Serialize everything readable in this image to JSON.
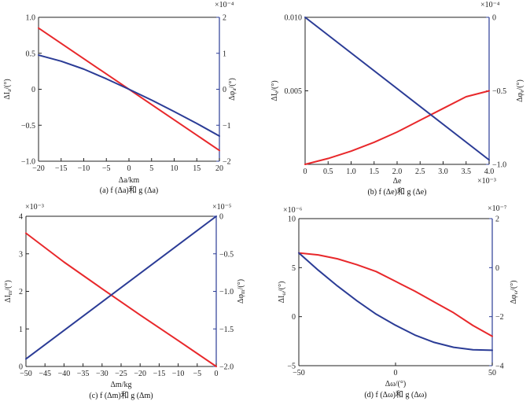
{
  "chart_data": [
    {
      "type": "line",
      "caption": "(a) f (Δa)和 g (Δa)",
      "xlabel": "Δa/km",
      "ylabel_left": "ΔI_a/(°)",
      "ylabel_right": "Δφ_a/(°)",
      "right_scale": "×10⁻⁴",
      "left_scale": "",
      "x_scale": "",
      "xlim": [
        -20,
        20
      ],
      "ylim_left": [
        -1.0,
        1.0
      ],
      "ylim_right": [
        -2,
        2
      ],
      "x_ticks": [
        -20,
        -15,
        -10,
        -5,
        0,
        5,
        10,
        15,
        20
      ],
      "x_tick_labels": [
        "−20",
        "−15",
        "−10",
        "−5",
        "0",
        "5",
        "10",
        "15",
        "20"
      ],
      "yl_ticks": [
        -1.0,
        -0.5,
        0,
        0.5,
        1.0
      ],
      "yl_tick_labels": [
        "−1.0",
        "−0.5",
        "0",
        "0.5",
        "1.0"
      ],
      "yr_ticks": [
        -2,
        -1,
        0,
        1,
        2
      ],
      "yr_tick_labels": [
        "−2",
        "−1",
        "0",
        "1",
        "2"
      ],
      "series": [
        {
          "name": "f",
          "axis": "left",
          "color": "#e8282b",
          "x": [
            -20,
            20
          ],
          "y": [
            0.85,
            -0.85
          ]
        },
        {
          "name": "g",
          "axis": "right",
          "color": "#2b3c96",
          "x": [
            -20,
            -15,
            -10,
            -5,
            0,
            5,
            10,
            15,
            20
          ],
          "y": [
            0.95,
            0.78,
            0.56,
            0.29,
            0.0,
            -0.3,
            -0.62,
            -0.95,
            -1.3
          ]
        }
      ]
    },
    {
      "type": "line",
      "caption": "(b) f (Δe)和 g (Δe)",
      "xlabel": "Δe",
      "ylabel_left": "ΔI_e/(°)",
      "ylabel_right": "Δφ_e/(°)",
      "right_scale": "×10⁻⁴",
      "left_scale": "",
      "x_scale": "×10⁻³",
      "xlim": [
        0,
        4.0
      ],
      "ylim_left": [
        0,
        0.01
      ],
      "ylim_right": [
        -1.0,
        0
      ],
      "x_ticks": [
        0,
        0.5,
        1.0,
        1.5,
        2.0,
        2.5,
        3.0,
        3.5,
        4.0
      ],
      "x_tick_labels": [
        "0",
        "0.5",
        "1.0",
        "1.5",
        "2.0",
        "2.5",
        "3.0",
        "3.5",
        "4.0"
      ],
      "yl_ticks": [
        0.005,
        0.01
      ],
      "yl_tick_labels": [
        "0.005",
        "0.010"
      ],
      "yr_ticks": [
        -1.0,
        -0.5,
        0
      ],
      "yr_tick_labels": [
        "−1.0",
        "−0.5",
        "0"
      ],
      "series": [
        {
          "name": "f",
          "axis": "left",
          "color": "#e8282b",
          "x": [
            0,
            0.5,
            1.0,
            1.5,
            2.0,
            2.5,
            3.0,
            3.5,
            4.0
          ],
          "y": [
            0.0,
            0.0004,
            0.0009,
            0.0015,
            0.0022,
            0.003,
            0.0038,
            0.0046,
            0.005
          ]
        },
        {
          "name": "g",
          "axis": "right",
          "color": "#2b3c96",
          "x": [
            0,
            4.0
          ],
          "y": [
            0.0,
            -0.97
          ]
        }
      ]
    },
    {
      "type": "line",
      "caption": "(c) f (Δm)和 g (Δm)",
      "xlabel": "Δm/kg",
      "ylabel_left": "ΔI_m/(°)",
      "ylabel_right": "Δφ_m/(°)",
      "right_scale": "×10⁻⁵",
      "left_scale": "×10⁻³",
      "x_scale": "",
      "xlim": [
        -50,
        0
      ],
      "ylim_left": [
        0,
        4
      ],
      "ylim_right": [
        -2.0,
        0
      ],
      "x_ticks": [
        -50,
        -45,
        -40,
        -35,
        -30,
        -25,
        -20,
        -15,
        -10,
        -5,
        0
      ],
      "x_tick_labels": [
        "−50",
        "−45",
        "−40",
        "−35",
        "−30",
        "−25",
        "−20",
        "−15",
        "−10",
        "−5",
        "0"
      ],
      "yl_ticks": [
        0,
        1,
        2,
        3,
        4
      ],
      "yl_tick_labels": [
        "0",
        "1",
        "2",
        "3",
        "4"
      ],
      "yr_ticks": [
        -2.0,
        -1.5,
        -1.0,
        -0.5,
        0
      ],
      "yr_tick_labels": [
        "−2.0",
        "−1.5",
        "−1.0",
        "−0.5",
        "0"
      ],
      "series": [
        {
          "name": "f",
          "axis": "left",
          "color": "#e8282b",
          "x": [
            -50,
            -40,
            -30,
            -20,
            -10,
            0
          ],
          "y": [
            3.55,
            2.78,
            2.07,
            1.37,
            0.69,
            0.0
          ]
        },
        {
          "name": "g",
          "axis": "right",
          "color": "#2b3c96",
          "x": [
            -50,
            0
          ],
          "y": [
            -1.9,
            0.0
          ]
        }
      ]
    },
    {
      "type": "line",
      "caption": "(d) f (Δω)和 g (Δω)",
      "xlabel": "Δω/(°)",
      "ylabel_left": "ΔI_ω/(°)",
      "ylabel_right": "Δφ_ω/(°)",
      "right_scale": "×10⁻⁷",
      "left_scale": "×10⁻⁶",
      "x_scale": "",
      "xlim": [
        -50,
        50
      ],
      "ylim_left": [
        -5,
        10
      ],
      "ylim_right": [
        -4,
        2
      ],
      "x_ticks": [
        -50,
        0,
        50
      ],
      "x_tick_labels": [
        "−50",
        "0",
        "50"
      ],
      "yl_ticks": [
        -5,
        0,
        5,
        10
      ],
      "yl_tick_labels": [
        "−5",
        "0",
        "5",
        "10"
      ],
      "yr_ticks": [
        -4,
        -2,
        0,
        2
      ],
      "yr_tick_labels": [
        "−4",
        "−2",
        "0",
        "2"
      ],
      "series": [
        {
          "name": "f",
          "axis": "left",
          "color": "#e8282b",
          "x": [
            -50,
            -40,
            -30,
            -20,
            -10,
            0,
            10,
            20,
            30,
            40,
            50
          ],
          "y": [
            6.5,
            6.3,
            5.9,
            5.3,
            4.6,
            3.6,
            2.6,
            1.5,
            0.4,
            -0.9,
            -2.0
          ]
        },
        {
          "name": "g",
          "axis": "right",
          "color": "#2b3c96",
          "x": [
            -50,
            -40,
            -30,
            -20,
            -10,
            0,
            10,
            20,
            30,
            40,
            50
          ],
          "y": [
            0.6,
            -0.1,
            -0.75,
            -1.35,
            -1.9,
            -2.35,
            -2.75,
            -3.05,
            -3.25,
            -3.35,
            -3.37
          ]
        }
      ]
    }
  ]
}
